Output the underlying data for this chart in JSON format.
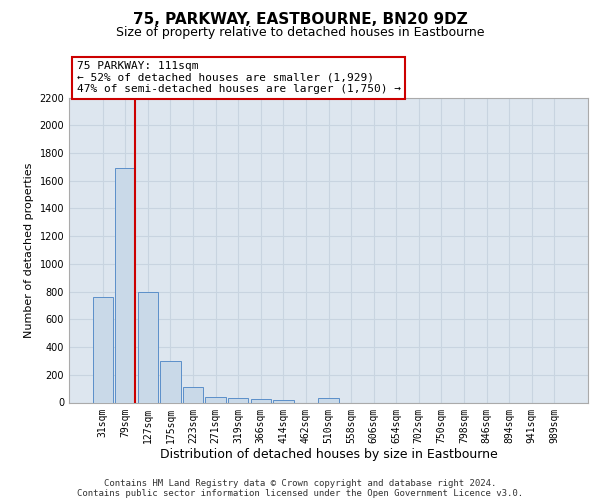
{
  "title": "75, PARKWAY, EASTBOURNE, BN20 9DZ",
  "subtitle": "Size of property relative to detached houses in Eastbourne",
  "xlabel": "Distribution of detached houses by size in Eastbourne",
  "ylabel": "Number of detached properties",
  "categories": [
    "31sqm",
    "79sqm",
    "127sqm",
    "175sqm",
    "223sqm",
    "271sqm",
    "319sqm",
    "366sqm",
    "414sqm",
    "462sqm",
    "510sqm",
    "558sqm",
    "606sqm",
    "654sqm",
    "702sqm",
    "750sqm",
    "798sqm",
    "846sqm",
    "894sqm",
    "941sqm",
    "989sqm"
  ],
  "values": [
    760,
    1690,
    800,
    300,
    115,
    42,
    30,
    22,
    18,
    0,
    30,
    0,
    0,
    0,
    0,
    0,
    0,
    0,
    0,
    0,
    0
  ],
  "bar_color": "#c9d9e8",
  "bar_edge_color": "#5b8fc9",
  "grid_color": "#c8d4e0",
  "background_color": "#dde6ef",
  "annotation_box_text": "75 PARKWAY: 111sqm\n← 52% of detached houses are smaller (1,929)\n47% of semi-detached houses are larger (1,750) →",
  "annotation_box_edge_color": "#cc0000",
  "vline_color": "#cc0000",
  "vline_x": 1.45,
  "ylim": [
    0,
    2200
  ],
  "yticks": [
    0,
    200,
    400,
    600,
    800,
    1000,
    1200,
    1400,
    1600,
    1800,
    2000,
    2200
  ],
  "footnote_line1": "Contains HM Land Registry data © Crown copyright and database right 2024.",
  "footnote_line2": "Contains public sector information licensed under the Open Government Licence v3.0.",
  "title_fontsize": 11,
  "subtitle_fontsize": 9,
  "xlabel_fontsize": 9,
  "ylabel_fontsize": 8,
  "tick_fontsize": 7,
  "annot_fontsize": 8,
  "footnote_fontsize": 6.5
}
